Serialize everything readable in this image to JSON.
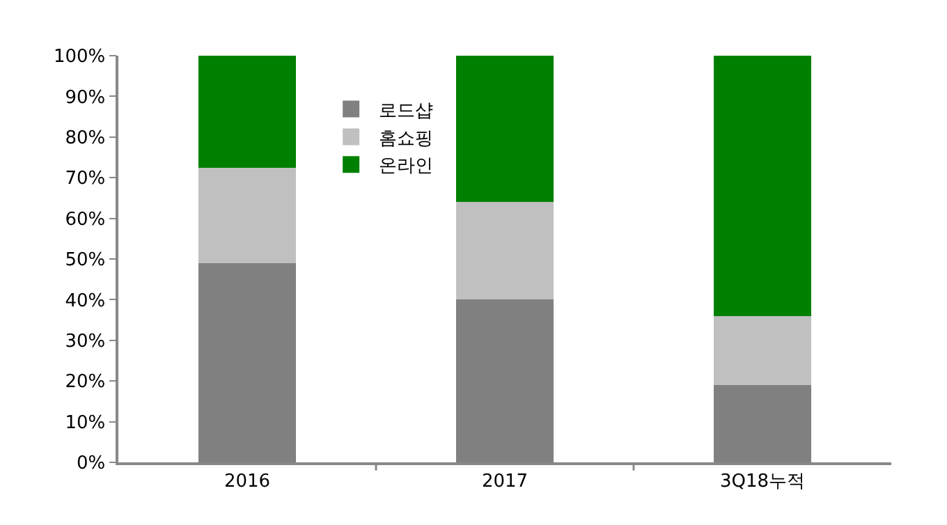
{
  "chart_data": {
    "type": "bar",
    "stacked": true,
    "categories": [
      "2016",
      "2017",
      "3Q18누적"
    ],
    "series": [
      {
        "name": "로드샵",
        "color": "#808080",
        "values": [
          49,
          40,
          19
        ]
      },
      {
        "name": "홈쇼핑",
        "color": "#c0c0c0",
        "values": [
          23.5,
          24,
          17
        ]
      },
      {
        "name": "온라인",
        "color": "#008000",
        "values": [
          27.5,
          36,
          64
        ]
      }
    ],
    "ylim": [
      0,
      100
    ],
    "yticks": [
      {
        "value": 0,
        "label": "0%"
      },
      {
        "value": 10,
        "label": "10%"
      },
      {
        "value": 20,
        "label": "20%"
      },
      {
        "value": 30,
        "label": "30%"
      },
      {
        "value": 40,
        "label": "40%"
      },
      {
        "value": 50,
        "label": "50%"
      },
      {
        "value": 60,
        "label": "60%"
      },
      {
        "value": 70,
        "label": "70%"
      },
      {
        "value": 80,
        "label": "80%"
      },
      {
        "value": 90,
        "label": "90%"
      },
      {
        "value": 100,
        "label": "100%"
      }
    ],
    "legend": "top"
  }
}
